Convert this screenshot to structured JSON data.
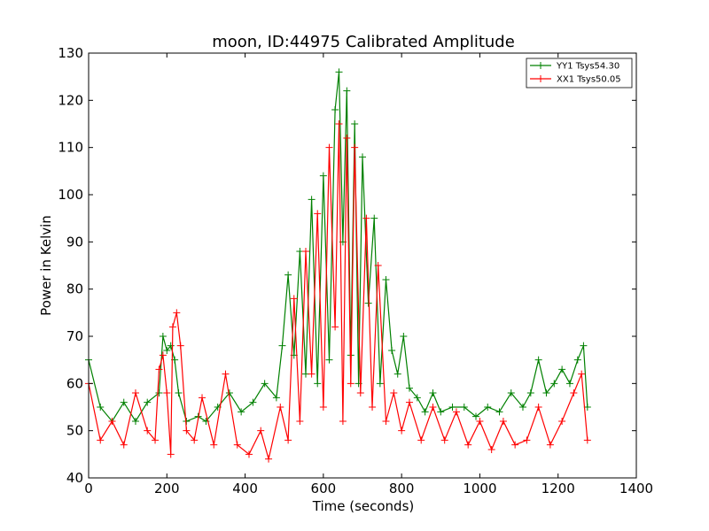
{
  "chart_data": {
    "type": "line",
    "title": "moon, ID:44975 Calibrated Amplitude",
    "xlabel": "Time (seconds)",
    "ylabel": "Power in Kelvin",
    "xlim": [
      0,
      1400
    ],
    "ylim": [
      40,
      130
    ],
    "xticks": [
      0,
      200,
      400,
      600,
      800,
      1000,
      1200,
      1400
    ],
    "yticks": [
      40,
      50,
      60,
      70,
      80,
      90,
      100,
      110,
      120,
      130
    ],
    "grid": false,
    "legend_position": "top-right",
    "marker": "+",
    "series": [
      {
        "name": "YY1 Tsys54.30",
        "color": "#008000",
        "x": [
          0,
          30,
          60,
          90,
          120,
          150,
          180,
          190,
          200,
          210,
          220,
          230,
          250,
          280,
          300,
          330,
          360,
          390,
          420,
          450,
          480,
          495,
          510,
          525,
          540,
          555,
          570,
          585,
          600,
          615,
          630,
          640,
          650,
          660,
          670,
          680,
          690,
          700,
          715,
          730,
          745,
          760,
          775,
          790,
          805,
          820,
          840,
          860,
          880,
          900,
          930,
          960,
          990,
          1020,
          1050,
          1080,
          1110,
          1130,
          1150,
          1170,
          1190,
          1210,
          1230,
          1250,
          1265,
          1275
        ],
        "values": [
          65,
          55,
          52,
          56,
          52,
          56,
          58,
          70,
          67,
          68,
          65,
          58,
          52,
          53,
          52,
          55,
          58,
          54,
          56,
          60,
          57,
          68,
          83,
          66,
          88,
          62,
          99,
          60,
          104,
          65,
          118,
          126,
          90,
          122,
          66,
          115,
          60,
          108,
          77,
          95,
          60,
          82,
          67,
          62,
          70,
          59,
          57,
          54,
          58,
          54,
          55,
          55,
          53,
          55,
          54,
          58,
          55,
          58,
          65,
          58,
          60,
          63,
          60,
          65,
          68,
          55
        ]
      },
      {
        "name": "XX1 Tsys50.05",
        "color": "#ff0000",
        "x": [
          0,
          30,
          60,
          90,
          120,
          150,
          170,
          180,
          190,
          200,
          210,
          215,
          225,
          235,
          250,
          270,
          290,
          320,
          350,
          380,
          410,
          440,
          460,
          490,
          510,
          525,
          540,
          555,
          570,
          585,
          600,
          615,
          630,
          640,
          650,
          660,
          670,
          680,
          695,
          710,
          725,
          740,
          760,
          780,
          800,
          820,
          850,
          880,
          910,
          940,
          970,
          1000,
          1030,
          1060,
          1090,
          1120,
          1150,
          1180,
          1210,
          1240,
          1260,
          1275
        ],
        "values": [
          60,
          48,
          52,
          47,
          58,
          50,
          48,
          63,
          66,
          58,
          45,
          72,
          75,
          68,
          50,
          48,
          57,
          47,
          62,
          47,
          45,
          50,
          44,
          55,
          48,
          78,
          52,
          88,
          62,
          96,
          55,
          110,
          72,
          115,
          52,
          112,
          60,
          110,
          58,
          95,
          55,
          85,
          52,
          58,
          50,
          56,
          48,
          55,
          48,
          54,
          47,
          52,
          46,
          52,
          47,
          48,
          55,
          47,
          52,
          58,
          62,
          48
        ]
      }
    ]
  }
}
